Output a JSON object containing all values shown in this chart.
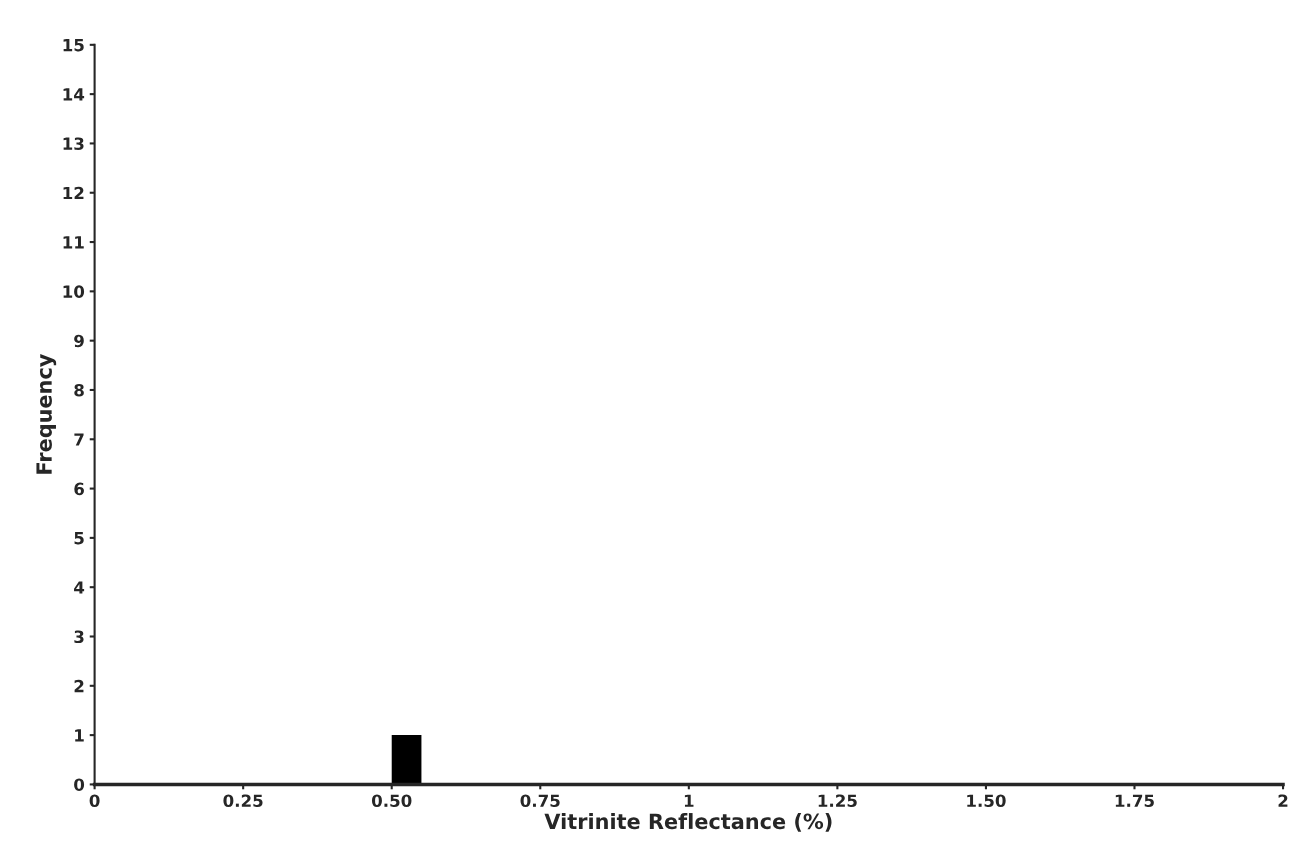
{
  "chart_data": {
    "type": "histogram",
    "xlabel": "Vitrinite Reflectance (%)",
    "ylabel": "Frequency",
    "bins": [
      0.5,
      0.55
    ],
    "values": [
      1
    ],
    "color": "#000000",
    "xlim": [
      0,
      2
    ],
    "xticks": [
      0,
      0.25,
      {
        "value": 0.5,
        "label": "0.50"
      },
      0.75,
      1,
      1.25,
      {
        "value": 1.5,
        "label": "1.50"
      },
      1.75,
      2
    ],
    "ylim": [
      0,
      15
    ],
    "yticks": [
      0,
      1,
      2,
      3,
      4,
      5,
      6,
      7,
      8,
      9,
      10,
      11,
      12,
      13,
      14,
      15
    ],
    "grid": false
  }
}
